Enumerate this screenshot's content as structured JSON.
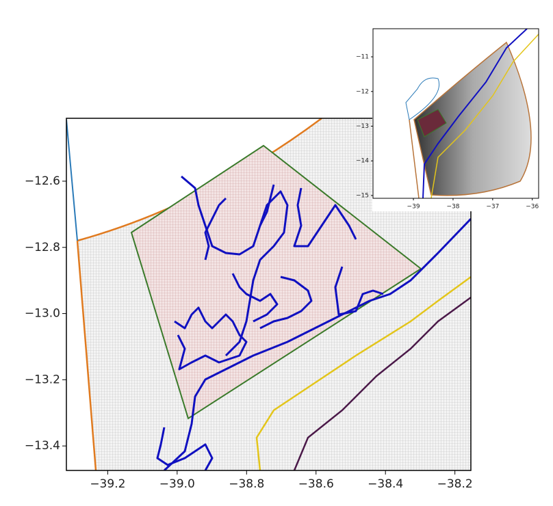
{
  "chart_data": [
    {
      "type": "map",
      "xlim": [
        -39.319,
        -38.154
      ],
      "ylim": [
        -13.474,
        -12.41
      ],
      "xticks": [
        {
          "value": -39.2,
          "label": "−39.2"
        },
        {
          "value": -39.0,
          "label": "−39.0"
        },
        {
          "value": -38.8,
          "label": "−38.8"
        },
        {
          "value": -38.6,
          "label": "−38.6"
        },
        {
          "value": -38.4,
          "label": "−38.4"
        },
        {
          "value": -38.2,
          "label": "−38.2"
        }
      ],
      "yticks": [
        {
          "value": -12.6,
          "label": "−12.6"
        },
        {
          "value": -12.8,
          "label": "−12.8"
        },
        {
          "value": -13.0,
          "label": "−13.0"
        },
        {
          "value": -13.2,
          "label": "−13.2"
        },
        {
          "value": -13.4,
          "label": "−13.4"
        }
      ]
    },
    {
      "type": "map",
      "xlim": [
        -40.02,
        -35.84
      ],
      "ylim": [
        -15.08,
        -10.19
      ],
      "xticks": [
        {
          "value": -39,
          "label": "−39"
        },
        {
          "value": -38,
          "label": "−38"
        },
        {
          "value": -37,
          "label": "−37"
        },
        {
          "value": -36,
          "label": "−36"
        }
      ],
      "yticks": [
        {
          "value": -11,
          "label": "−11"
        },
        {
          "value": -12,
          "label": "−12"
        },
        {
          "value": -13,
          "label": "−13"
        },
        {
          "value": -14,
          "label": "−14"
        },
        {
          "value": -15,
          "label": "−15"
        }
      ]
    }
  ]
}
